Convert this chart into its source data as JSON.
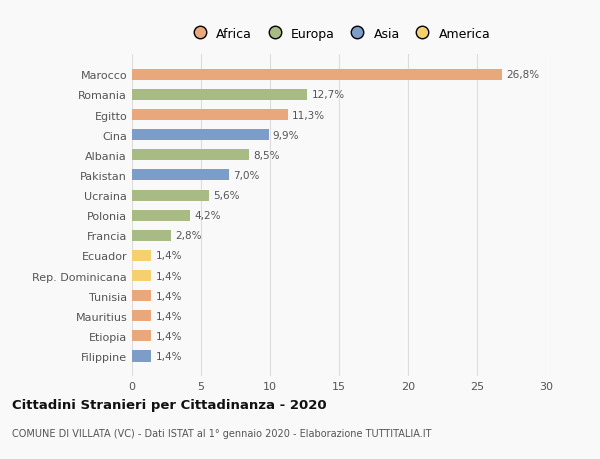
{
  "categories": [
    "Filippine",
    "Etiopia",
    "Mauritius",
    "Tunisia",
    "Rep. Dominicana",
    "Ecuador",
    "Francia",
    "Polonia",
    "Ucraina",
    "Pakistan",
    "Albania",
    "Cina",
    "Egitto",
    "Romania",
    "Marocco"
  ],
  "values": [
    1.4,
    1.4,
    1.4,
    1.4,
    1.4,
    1.4,
    2.8,
    4.2,
    5.6,
    7.0,
    8.5,
    9.9,
    11.3,
    12.7,
    26.8
  ],
  "colors": [
    "#7b9dc7",
    "#e8a87c",
    "#e8a87c",
    "#e8a87c",
    "#f5d06e",
    "#f5d06e",
    "#a8bb85",
    "#a8bb85",
    "#a8bb85",
    "#7b9dc7",
    "#a8bb85",
    "#7b9dc7",
    "#e8a87c",
    "#a8bb85",
    "#e8a87c"
  ],
  "labels": [
    "1,4%",
    "1,4%",
    "1,4%",
    "1,4%",
    "1,4%",
    "1,4%",
    "2,8%",
    "4,2%",
    "5,6%",
    "7,0%",
    "8,5%",
    "9,9%",
    "11,3%",
    "12,7%",
    "26,8%"
  ],
  "legend": [
    {
      "label": "Africa",
      "color": "#e8a87c"
    },
    {
      "label": "Europa",
      "color": "#a8bb85"
    },
    {
      "label": "Asia",
      "color": "#7b9dc7"
    },
    {
      "label": "America",
      "color": "#f5d06e"
    }
  ],
  "xlim": [
    0,
    30
  ],
  "xticks": [
    0,
    5,
    10,
    15,
    20,
    25,
    30
  ],
  "title": "Cittadini Stranieri per Cittadinanza - 2020",
  "subtitle": "COMUNE DI VILLATA (VC) - Dati ISTAT al 1° gennaio 2020 - Elaborazione TUTTITALIA.IT",
  "background_color": "#f9f9f9",
  "grid_color": "#dddddd",
  "bar_height": 0.55
}
